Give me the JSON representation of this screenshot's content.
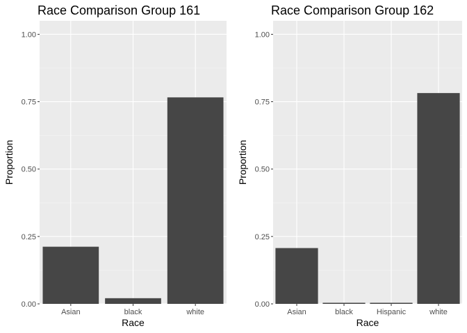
{
  "chart_data": [
    {
      "type": "bar",
      "title": "Race Comparison Group 161",
      "xlabel": "Race",
      "ylabel": "Proportion",
      "categories": [
        "Asian",
        "black",
        "white"
      ],
      "values": [
        0.212,
        0.021,
        0.766
      ],
      "ylim": [
        0,
        1.05
      ],
      "yticks": [
        "0.00",
        "0.25",
        "0.50",
        "0.75",
        "1.00"
      ],
      "grid": true,
      "bar_color": "#464646",
      "panel_background": "#ebebeb"
    },
    {
      "type": "bar",
      "title": "Race Comparison Group 162",
      "xlabel": "Race",
      "ylabel": "Proportion",
      "categories": [
        "Asian",
        "black",
        "Hispanic",
        "white"
      ],
      "values": [
        0.207,
        0.004,
        0.004,
        0.782
      ],
      "ylim": [
        0,
        1.05
      ],
      "yticks": [
        "0.00",
        "0.25",
        "0.50",
        "0.75",
        "1.00"
      ],
      "grid": true,
      "bar_color": "#464646",
      "panel_background": "#ebebeb"
    }
  ]
}
